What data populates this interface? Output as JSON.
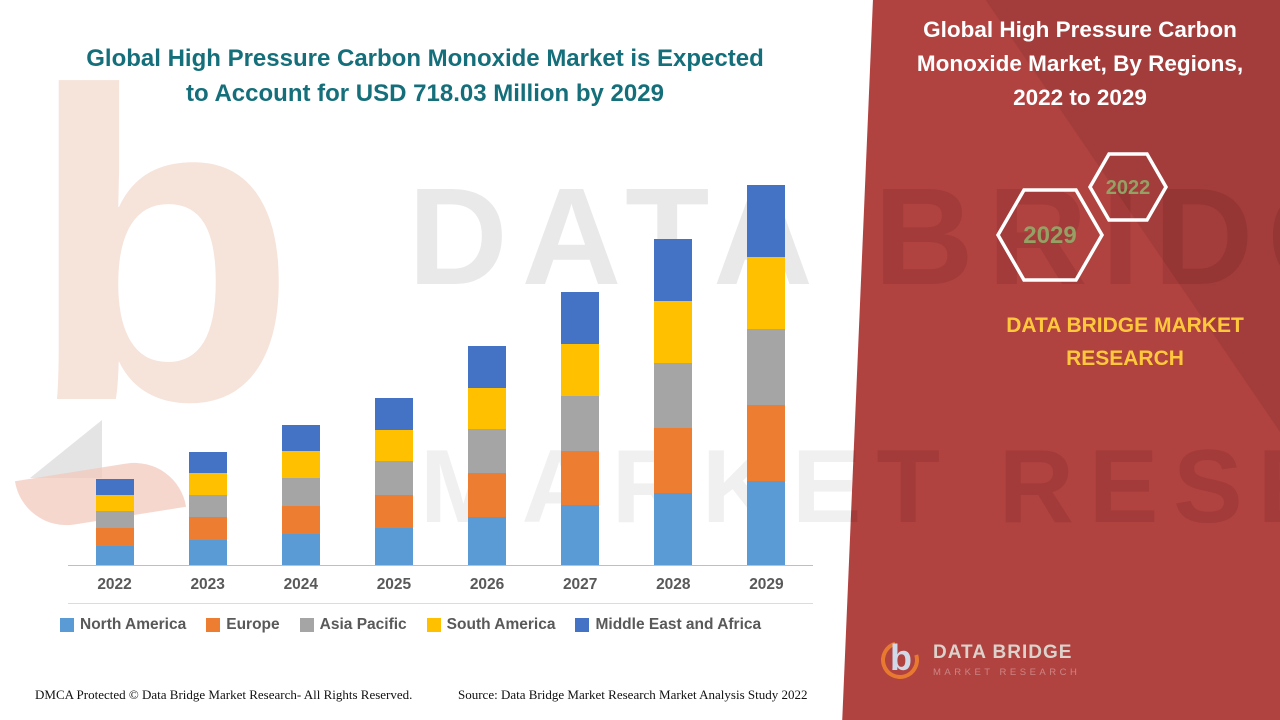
{
  "texts": {
    "left_title": "Global High Pressure Carbon Monoxide Market is Expected to Account for USD 718.03 Million by 2029",
    "panel_title": "Global High Pressure Carbon Monoxide Market, By Regions, 2022 to 2029",
    "brand_caps": "DATA BRIDGE MARKET RESEARCH",
    "footer_dmca": "DMCA Protected © Data Bridge Market Research- All Rights Reserved.",
    "footer_source": "Source: Data Bridge Market Research Market Analysis Study 2022"
  },
  "hexagons": [
    {
      "label": "2029"
    },
    {
      "label": "2022"
    }
  ],
  "watermark": {
    "line1": "DATA BRIDGE",
    "line2": "MARKET RESEARCH",
    "logo_glyph": "b"
  },
  "logo": {
    "glyph": "b",
    "title": "DATA BRIDGE",
    "subtitle": "MARKET RESEARCH"
  },
  "colors": {
    "title_teal": "#156F7B",
    "panel_red": "#B04240",
    "brand_yellow": "#FFC83C",
    "hexagon_label_green": "#95A065",
    "axis_text_gray": "#595959"
  },
  "chart_data": {
    "type": "bar",
    "stacked": true,
    "title": "Global High Pressure Carbon Monoxide Market, By Regions (USD Million, values estimated from bar heights; 2029 total stated as 718.03)",
    "xlabel": "",
    "ylabel": "",
    "grid": false,
    "legend_position": "bottom",
    "ylim": [
      0,
      718.03
    ],
    "categories": [
      "2022",
      "2023",
      "2024",
      "2025",
      "2026",
      "2027",
      "2028",
      "2029"
    ],
    "series": [
      {
        "name": "North America",
        "color": "#5B9BD5",
        "values": [
          36,
          47,
          58,
          70,
          91,
          113,
          136,
          158
        ]
      },
      {
        "name": "Europe",
        "color": "#ED7D31",
        "values": [
          33,
          43,
          53,
          63,
          83,
          103,
          123,
          144
        ]
      },
      {
        "name": "Asia Pacific",
        "color": "#A5A5A5",
        "values": [
          33,
          43,
          53,
          63,
          83,
          103,
          123,
          144
        ]
      },
      {
        "name": "South America",
        "color": "#FFC000",
        "values": [
          31,
          41,
          51,
          60,
          78,
          98,
          117,
          136
        ]
      },
      {
        "name": "Middle East and Africa",
        "color": "#4472C4",
        "values": [
          30,
          40,
          50,
          60,
          78,
          98,
          117,
          136.03
        ]
      }
    ],
    "totals": [
      163,
      214,
      265,
      316,
      413,
      515,
      616,
      718.03
    ]
  }
}
